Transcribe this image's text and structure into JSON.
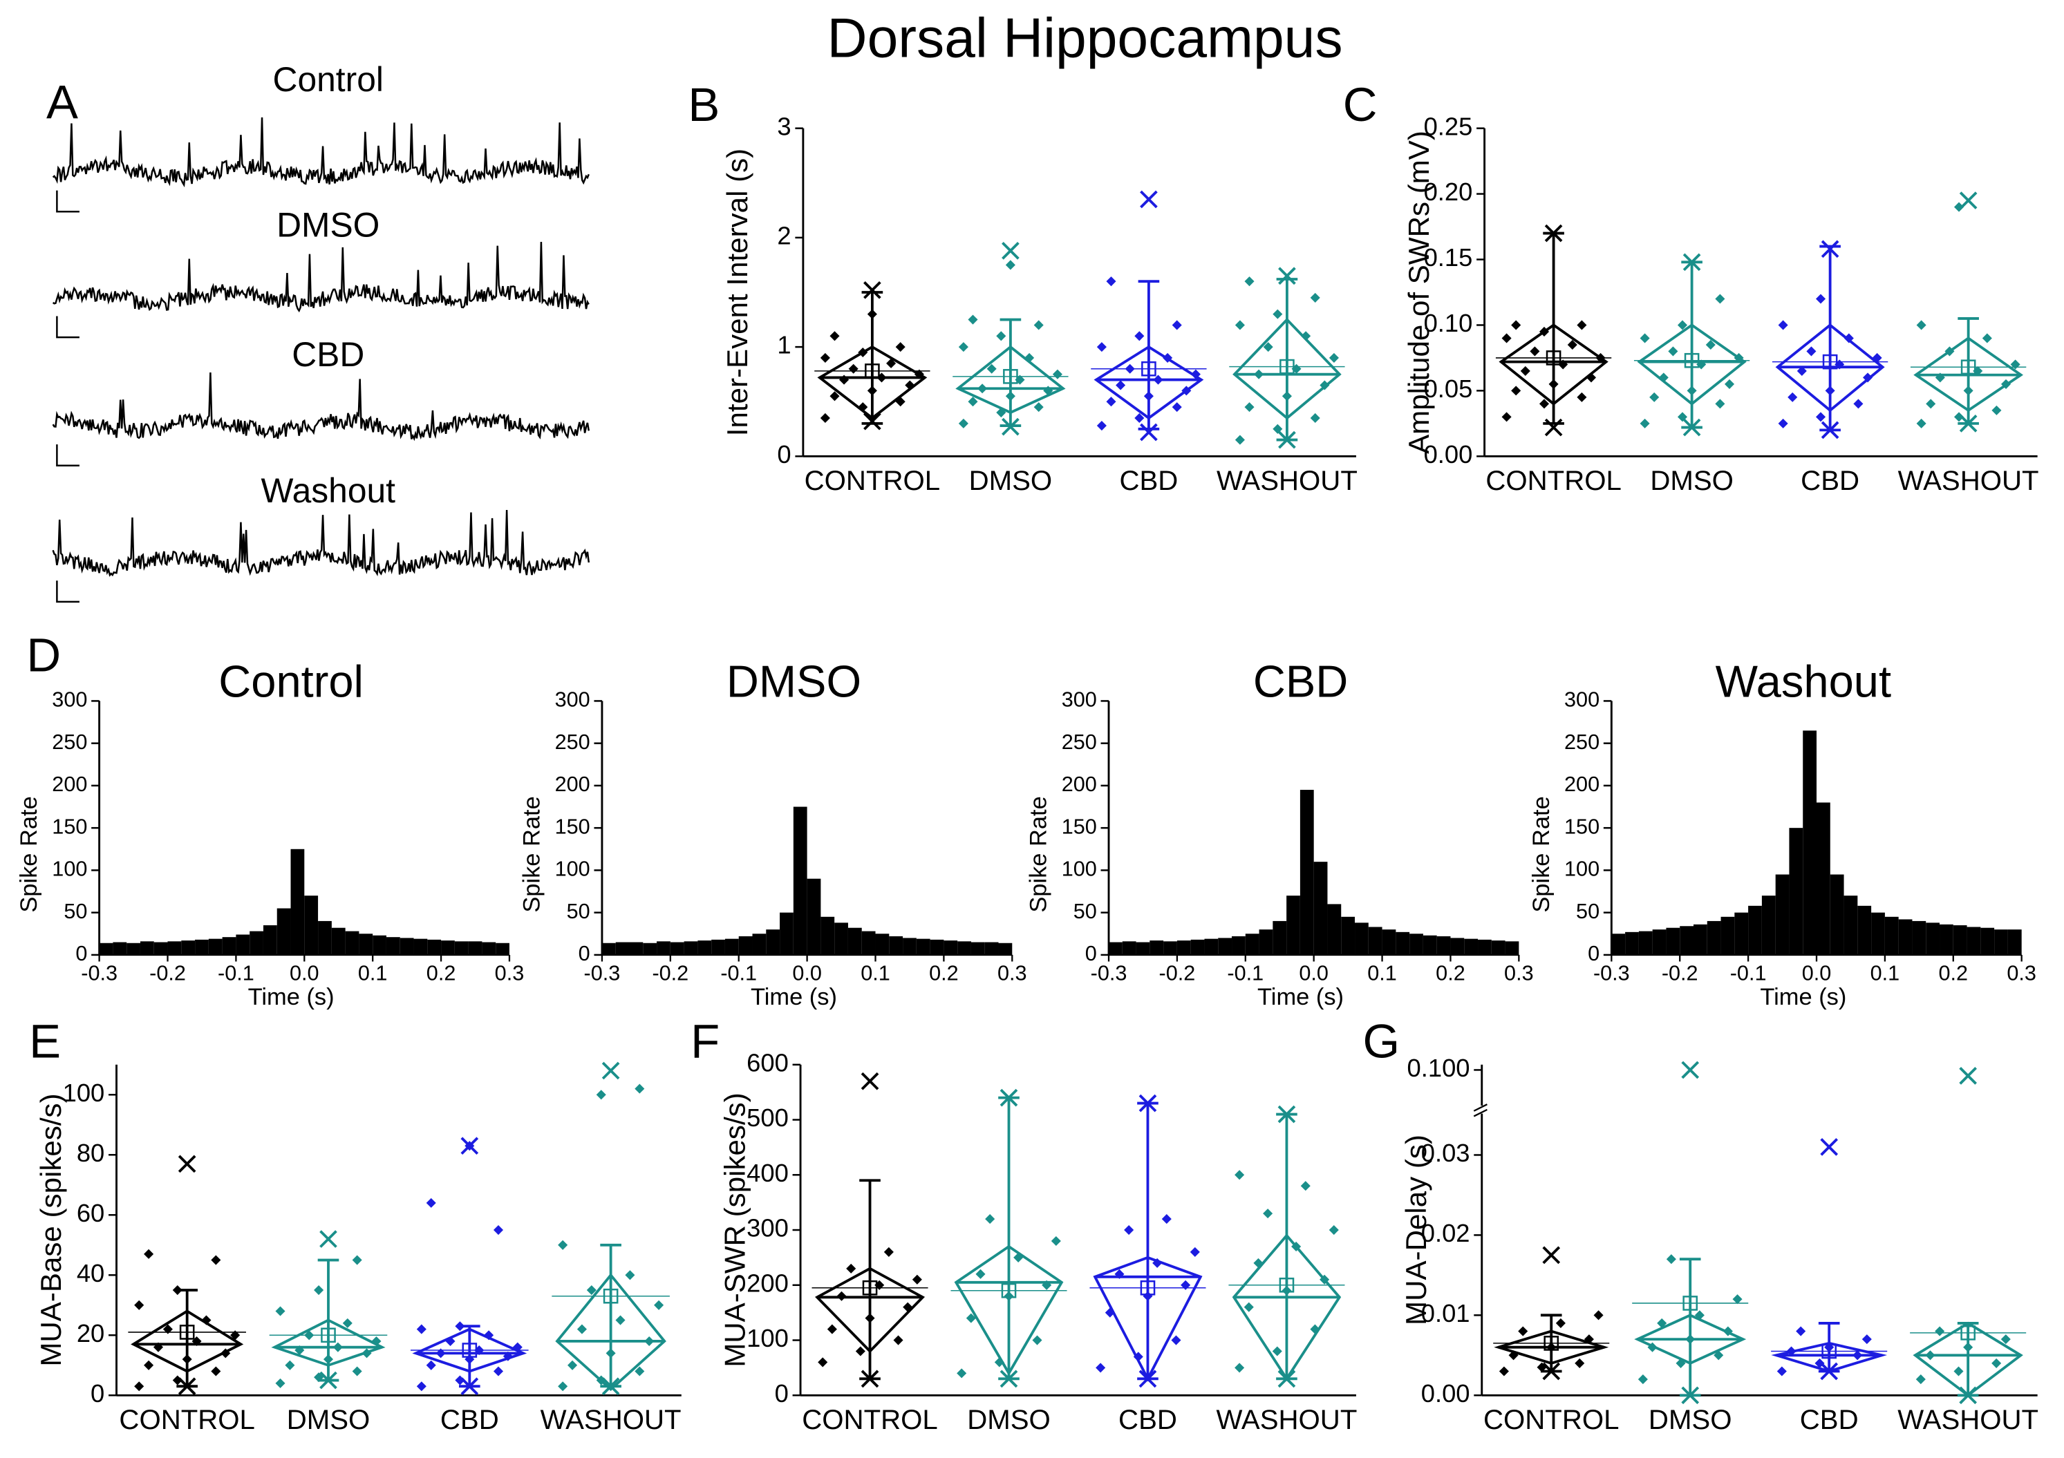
{
  "title": "Dorsal Hippocampus",
  "panel_a": {
    "letter": "A",
    "traces": [
      "Control",
      "DMSO",
      "CBD",
      "Washout"
    ]
  },
  "chart_data": [
    {
      "type": "box",
      "letter": "B",
      "ylabel": "Inter-Event Interval (s)",
      "ylim": [
        0,
        3
      ],
      "yticks": [
        0,
        1,
        2,
        3
      ],
      "categories": [
        "CONTROL",
        "DMSO",
        "CBD",
        "WASHOUT"
      ],
      "groups": [
        {
          "color": "#000000",
          "q1": 0.35,
          "median": 0.72,
          "q3": 1.0,
          "mean": 0.78,
          "whisker": [
            0.3,
            1.5
          ],
          "extremes": [
            0.32,
            1.52
          ],
          "values": [
            0.35,
            0.45,
            0.5,
            0.55,
            0.6,
            0.65,
            0.7,
            0.72,
            0.75,
            0.8,
            0.85,
            0.9,
            0.95,
            1.0,
            1.1,
            1.3
          ]
        },
        {
          "color": "#1a8f8a",
          "q1": 0.4,
          "median": 0.62,
          "q3": 1.0,
          "mean": 0.73,
          "whisker": [
            0.28,
            1.25
          ],
          "extremes": [
            0.27,
            1.88
          ],
          "values": [
            0.3,
            0.4,
            0.45,
            0.5,
            0.55,
            0.6,
            0.62,
            0.7,
            0.75,
            0.8,
            0.9,
            1.0,
            1.1,
            1.2,
            1.25,
            1.75
          ]
        },
        {
          "color": "#1c1ce0",
          "q1": 0.35,
          "median": 0.7,
          "q3": 1.0,
          "mean": 0.8,
          "whisker": [
            0.25,
            1.6
          ],
          "extremes": [
            0.22,
            2.35
          ],
          "values": [
            0.28,
            0.35,
            0.45,
            0.5,
            0.55,
            0.6,
            0.65,
            0.7,
            0.75,
            0.8,
            0.9,
            1.0,
            1.1,
            1.2,
            1.6
          ]
        },
        {
          "color": "#1a8f8a",
          "q1": 0.35,
          "median": 0.75,
          "q3": 1.25,
          "mean": 0.82,
          "whisker": [
            0.15,
            1.62
          ],
          "extremes": [
            0.15,
            1.65
          ],
          "values": [
            0.15,
            0.25,
            0.35,
            0.45,
            0.55,
            0.65,
            0.75,
            0.8,
            0.9,
            1.0,
            1.1,
            1.2,
            1.3,
            1.45,
            1.6
          ]
        }
      ]
    },
    {
      "type": "box",
      "letter": "C",
      "ylabel": "Amplitude of SWRs (mV)",
      "ylim": [
        0,
        0.25
      ],
      "yticks": [
        {
          "value": 0,
          "label": "0.00"
        },
        0.05,
        {
          "value": 0.1,
          "label": "0.10"
        },
        0.15,
        {
          "value": 0.2,
          "label": "0.20"
        },
        0.25
      ],
      "categories": [
        "CONTROL",
        "DMSO",
        "CBD",
        "WASHOUT"
      ],
      "groups": [
        {
          "color": "#000000",
          "q1": 0.04,
          "median": 0.072,
          "q3": 0.1,
          "mean": 0.075,
          "whisker": [
            0.025,
            0.17
          ],
          "extremes": [
            0.022,
            0.17
          ],
          "values": [
            0.03,
            0.04,
            0.045,
            0.05,
            0.055,
            0.06,
            0.065,
            0.07,
            0.075,
            0.08,
            0.085,
            0.09,
            0.095,
            0.1,
            0.1
          ]
        },
        {
          "color": "#1a8f8a",
          "q1": 0.04,
          "median": 0.072,
          "q3": 0.1,
          "mean": 0.073,
          "whisker": [
            0.022,
            0.148
          ],
          "extremes": [
            0.022,
            0.148
          ],
          "values": [
            0.025,
            0.03,
            0.04,
            0.045,
            0.05,
            0.055,
            0.06,
            0.07,
            0.075,
            0.08,
            0.085,
            0.09,
            0.1,
            0.12
          ]
        },
        {
          "color": "#1c1ce0",
          "q1": 0.035,
          "median": 0.068,
          "q3": 0.1,
          "mean": 0.072,
          "whisker": [
            0.02,
            0.16
          ],
          "extremes": [
            0.02,
            0.158
          ],
          "values": [
            0.025,
            0.03,
            0.04,
            0.045,
            0.05,
            0.06,
            0.065,
            0.07,
            0.075,
            0.08,
            0.09,
            0.1,
            0.12
          ]
        },
        {
          "color": "#1a8f8a",
          "q1": 0.035,
          "median": 0.062,
          "q3": 0.09,
          "mean": 0.068,
          "whisker": [
            0.025,
            0.105
          ],
          "extremes": [
            0.025,
            0.195
          ],
          "values": [
            0.025,
            0.03,
            0.035,
            0.04,
            0.05,
            0.055,
            0.06,
            0.065,
            0.07,
            0.08,
            0.09,
            0.1,
            0.19
          ]
        }
      ]
    },
    {
      "type": "histogram",
      "letter": "D",
      "title": "Control",
      "xlabel": "Time (s)",
      "ylabel": "Spike Rate",
      "color": "#000000",
      "bins": [
        -0.3,
        -0.28,
        -0.26,
        -0.24,
        -0.22,
        -0.2,
        -0.18,
        -0.16,
        -0.14,
        -0.12,
        -0.1,
        -0.08,
        -0.06,
        -0.04,
        -0.02,
        0,
        0.02,
        0.04,
        0.06,
        0.08,
        0.1,
        0.12,
        0.14,
        0.16,
        0.18,
        0.2,
        0.22,
        0.24,
        0.26,
        0.28,
        0.3
      ],
      "values": [
        14,
        15,
        14,
        16,
        15,
        16,
        17,
        18,
        19,
        21,
        24,
        28,
        35,
        55,
        125,
        70,
        40,
        32,
        28,
        25,
        23,
        21,
        20,
        19,
        18,
        17,
        16,
        16,
        15,
        14
      ],
      "xlim": [
        -0.3,
        0.3
      ],
      "xticks": [
        -0.3,
        -0.2,
        -0.1,
        {
          "value": 0,
          "label": "0.0"
        },
        0.1,
        0.2,
        0.3
      ],
      "ylim": [
        0,
        300
      ],
      "yticks": [
        0,
        50,
        100,
        150,
        200,
        250,
        300
      ]
    },
    {
      "type": "histogram",
      "title": "DMSO",
      "xlabel": "Time (s)",
      "ylabel": "Spike Rate",
      "color": "#000000",
      "bins": [
        -0.3,
        -0.28,
        -0.26,
        -0.24,
        -0.22,
        -0.2,
        -0.18,
        -0.16,
        -0.14,
        -0.12,
        -0.1,
        -0.08,
        -0.06,
        -0.04,
        -0.02,
        0,
        0.02,
        0.04,
        0.06,
        0.08,
        0.1,
        0.12,
        0.14,
        0.16,
        0.18,
        0.2,
        0.22,
        0.24,
        0.26,
        0.28,
        0.3
      ],
      "values": [
        14,
        15,
        15,
        14,
        16,
        15,
        16,
        17,
        18,
        19,
        22,
        25,
        30,
        50,
        175,
        90,
        45,
        38,
        32,
        28,
        25,
        22,
        20,
        19,
        18,
        17,
        16,
        15,
        15,
        14
      ],
      "xlim": [
        -0.3,
        0.3
      ],
      "xticks": [
        -0.3,
        -0.2,
        -0.1,
        {
          "value": 0,
          "label": "0.0"
        },
        0.1,
        0.2,
        0.3
      ],
      "ylim": [
        0,
        300
      ],
      "yticks": [
        0,
        50,
        100,
        150,
        200,
        250,
        300
      ]
    },
    {
      "type": "histogram",
      "title": "CBD",
      "xlabel": "Time (s)",
      "ylabel": "Spike Rate",
      "color": "#000000",
      "bins": [
        -0.3,
        -0.28,
        -0.26,
        -0.24,
        -0.22,
        -0.2,
        -0.18,
        -0.16,
        -0.14,
        -0.12,
        -0.1,
        -0.08,
        -0.06,
        -0.04,
        -0.02,
        0,
        0.02,
        0.04,
        0.06,
        0.08,
        0.1,
        0.12,
        0.14,
        0.16,
        0.18,
        0.2,
        0.22,
        0.24,
        0.26,
        0.28,
        0.3
      ],
      "values": [
        15,
        16,
        15,
        17,
        16,
        17,
        18,
        19,
        20,
        22,
        25,
        30,
        40,
        70,
        195,
        110,
        60,
        45,
        38,
        33,
        30,
        27,
        25,
        23,
        22,
        20,
        19,
        18,
        17,
        16
      ],
      "xlim": [
        -0.3,
        0.3
      ],
      "xticks": [
        -0.3,
        -0.2,
        -0.1,
        {
          "value": 0,
          "label": "0.0"
        },
        0.1,
        0.2,
        0.3
      ],
      "ylim": [
        0,
        300
      ],
      "yticks": [
        0,
        50,
        100,
        150,
        200,
        250,
        300
      ]
    },
    {
      "type": "histogram",
      "title": "Washout",
      "xlabel": "Time (s)",
      "ylabel": "Spike Rate",
      "color": "#000000",
      "bins": [
        -0.3,
        -0.28,
        -0.26,
        -0.24,
        -0.22,
        -0.2,
        -0.18,
        -0.16,
        -0.14,
        -0.12,
        -0.1,
        -0.08,
        -0.06,
        -0.04,
        -0.02,
        0,
        0.02,
        0.04,
        0.06,
        0.08,
        0.1,
        0.12,
        0.14,
        0.16,
        0.18,
        0.2,
        0.22,
        0.24,
        0.26,
        0.28,
        0.3
      ],
      "values": [
        25,
        27,
        28,
        30,
        32,
        34,
        36,
        40,
        45,
        50,
        58,
        70,
        95,
        150,
        265,
        180,
        95,
        70,
        58,
        50,
        45,
        42,
        40,
        38,
        36,
        35,
        33,
        32,
        30,
        30
      ],
      "xlim": [
        -0.3,
        0.3
      ],
      "xticks": [
        -0.3,
        -0.2,
        -0.1,
        {
          "value": 0,
          "label": "0.0"
        },
        0.1,
        0.2,
        0.3
      ],
      "ylim": [
        0,
        300
      ],
      "yticks": [
        0,
        50,
        100,
        150,
        200,
        250,
        300
      ]
    },
    {
      "type": "box",
      "letter": "E",
      "ylabel": "MUA-Base (spikes/s)",
      "ylim": [
        0,
        110
      ],
      "yticks": [
        0,
        20,
        40,
        60,
        80,
        100
      ],
      "categories": [
        "CONTROL",
        "DMSO",
        "CBD",
        "WASHOUT"
      ],
      "groups": [
        {
          "color": "#000000",
          "q1": 8,
          "median": 17,
          "q3": 28,
          "mean": 21,
          "whisker": [
            3,
            35
          ],
          "extremes": [
            3,
            77
          ],
          "values": [
            3,
            5,
            8,
            10,
            12,
            14,
            16,
            18,
            20,
            22,
            25,
            30,
            35,
            45,
            47
          ]
        },
        {
          "color": "#1a8f8a",
          "q1": 10,
          "median": 16,
          "q3": 25,
          "mean": 20,
          "whisker": [
            5,
            45
          ],
          "extremes": [
            5,
            52
          ],
          "values": [
            4,
            6,
            8,
            10,
            12,
            14,
            15,
            16,
            18,
            20,
            24,
            28,
            35,
            45
          ]
        },
        {
          "color": "#1c1ce0",
          "q1": 8,
          "median": 14,
          "q3": 22,
          "mean": 15,
          "whisker": [
            3,
            23
          ],
          "extremes": [
            3,
            83
          ],
          "values": [
            3,
            5,
            8,
            10,
            12,
            13,
            14,
            15,
            16,
            18,
            20,
            22,
            23,
            55,
            64,
            83
          ]
        },
        {
          "color": "#1a8f8a",
          "q1": 2,
          "median": 18,
          "q3": 40,
          "mean": 33,
          "whisker": [
            3,
            50
          ],
          "extremes": [
            3,
            108
          ],
          "values": [
            3,
            5,
            8,
            10,
            14,
            18,
            22,
            25,
            30,
            35,
            40,
            50,
            100,
            102
          ]
        }
      ]
    },
    {
      "type": "box",
      "letter": "F",
      "ylabel": "MUA-SWR (spikes/s)",
      "ylim": [
        0,
        600
      ],
      "yticks": [
        0,
        100,
        200,
        300,
        400,
        500,
        600
      ],
      "categories": [
        "CONTROL",
        "DMSO",
        "CBD",
        "WASHOUT"
      ],
      "groups": [
        {
          "color": "#000000",
          "q1": 80,
          "median": 178,
          "q3": 230,
          "mean": 195,
          "whisker": [
            30,
            390
          ],
          "extremes": [
            30,
            570
          ],
          "values": [
            60,
            80,
            100,
            120,
            140,
            160,
            180,
            200,
            210,
            230,
            260
          ]
        },
        {
          "color": "#1a8f8a",
          "q1": 40,
          "median": 205,
          "q3": 270,
          "mean": 190,
          "whisker": [
            30,
            540
          ],
          "extremes": [
            30,
            540
          ],
          "values": [
            40,
            60,
            100,
            140,
            180,
            200,
            220,
            250,
            280,
            320
          ]
        },
        {
          "color": "#1c1ce0",
          "q1": 30,
          "median": 215,
          "q3": 250,
          "mean": 195,
          "whisker": [
            30,
            530
          ],
          "extremes": [
            30,
            530
          ],
          "values": [
            50,
            70,
            100,
            150,
            180,
            200,
            220,
            240,
            260,
            300,
            320
          ]
        },
        {
          "color": "#1a8f8a",
          "q1": 30,
          "median": 178,
          "q3": 290,
          "mean": 200,
          "whisker": [
            30,
            510
          ],
          "extremes": [
            30,
            510
          ],
          "values": [
            50,
            80,
            120,
            160,
            190,
            210,
            240,
            270,
            300,
            330,
            380,
            400
          ]
        }
      ]
    },
    {
      "type": "box",
      "letter": "G",
      "ylabel": "MUA-Delay (s)",
      "ylim": [
        0,
        0.1
      ],
      "axis_break": [
        0.035,
        0.095
      ],
      "yticks": [
        {
          "value": 0,
          "label": "0.00"
        },
        0.01,
        0.02,
        0.03,
        {
          "value": 0.1,
          "label": "0.100"
        }
      ],
      "categories": [
        "CONTROL",
        "DMSO",
        "CBD",
        "WASHOUT"
      ],
      "groups": [
        {
          "color": "#000000",
          "q1": 0.004,
          "median": 0.006,
          "q3": 0.008,
          "mean": 0.0065,
          "whisker": [
            0.003,
            0.01
          ],
          "extremes": [
            0.003,
            0.0175
          ],
          "values": [
            0.003,
            0.0035,
            0.004,
            0.005,
            0.006,
            0.007,
            0.008,
            0.009,
            0.01
          ]
        },
        {
          "color": "#1a8f8a",
          "q1": 0.004,
          "median": 0.007,
          "q3": 0.01,
          "mean": 0.0115,
          "whisker": [
            0,
            0.017
          ],
          "extremes": [
            0,
            0.1
          ],
          "values": [
            0.002,
            0.004,
            0.005,
            0.006,
            0.007,
            0.008,
            0.009,
            0.01,
            0.012,
            0.017
          ]
        },
        {
          "color": "#1c1ce0",
          "q1": 0.003,
          "median": 0.005,
          "q3": 0.0065,
          "mean": 0.0055,
          "whisker": [
            0.003,
            0.009
          ],
          "extremes": [
            0.003,
            0.031
          ],
          "values": [
            0.003,
            0.004,
            0.005,
            0.0055,
            0.006,
            0.007,
            0.008
          ]
        },
        {
          "color": "#1a8f8a",
          "q1": 0,
          "median": 0.005,
          "q3": 0.009,
          "mean": 0.0078,
          "whisker": [
            0,
            0.009
          ],
          "extremes": [
            0,
            0.099
          ],
          "values": [
            0.002,
            0.003,
            0.004,
            0.005,
            0.006,
            0.007,
            0.008
          ]
        }
      ]
    }
  ]
}
